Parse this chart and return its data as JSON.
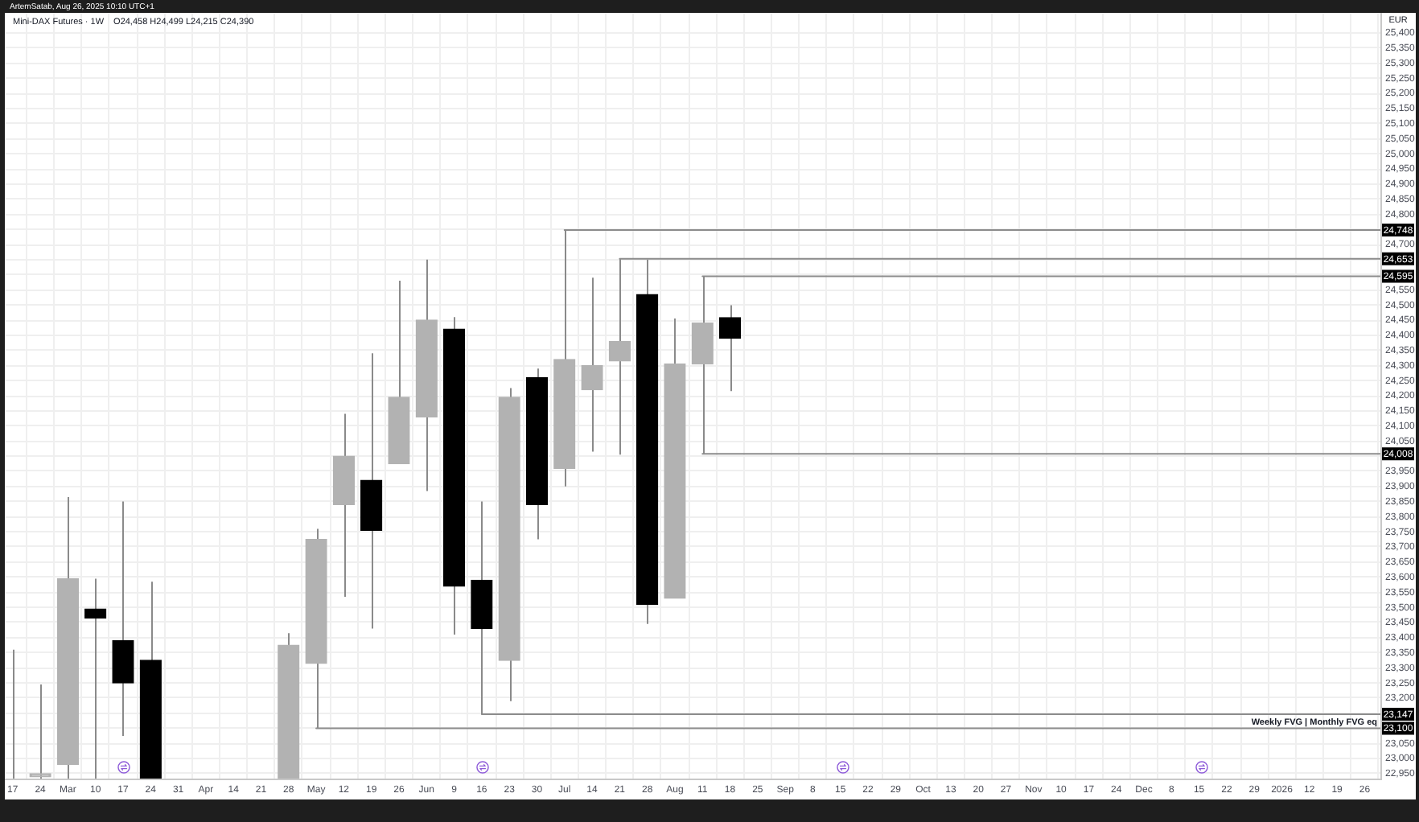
{
  "chart_data": {
    "type": "candlestick",
    "title": "Mini-DAX Futures · 1W",
    "subtitle": "O24,458 H24,499 L24,215 C24,390",
    "ylabel": "EUR",
    "annotations": [
      "ArtemSatab, Aug 26, 2025 10:10 UTC+1"
    ],
    "x": [
      "2025-02-17",
      "2025-02-24",
      "2025-03-03",
      "2025-03-10",
      "2025-03-17",
      "2025-03-24",
      "2025-04-28",
      "2025-05-05",
      "2025-05-12",
      "2025-05-19",
      "2025-05-26",
      "2025-06-02",
      "2025-06-09",
      "2025-06-16",
      "2025-06-23",
      "2025-06-30",
      "2025-07-07",
      "2025-07-14",
      "2025-07-21",
      "2025-07-28",
      "2025-08-04",
      "2025-08-11",
      "2025-08-18"
    ],
    "ohlc": [
      [
        22934,
        23360,
        22934,
        22934
      ],
      [
        22940,
        23245,
        22934,
        22950
      ],
      [
        22980,
        23865,
        22934,
        23595
      ],
      [
        23495,
        23595,
        22934,
        23465
      ],
      [
        23390,
        23850,
        23075,
        23250
      ],
      [
        23325,
        23585,
        22934,
        22934
      ],
      [
        22934,
        23415,
        22934,
        23375
      ],
      [
        23315,
        23760,
        23100,
        23725
      ],
      [
        23840,
        24140,
        23535,
        24000
      ],
      [
        23920,
        24340,
        23430,
        23755
      ],
      [
        23975,
        24580,
        23975,
        24195
      ],
      [
        24130,
        24650,
        23885,
        24450
      ],
      [
        24420,
        24460,
        23410,
        23570
      ],
      [
        23590,
        23850,
        23147,
        23430
      ],
      [
        23325,
        24225,
        23190,
        24195
      ],
      [
        24260,
        24290,
        23725,
        23840
      ],
      [
        23960,
        24748,
        23900,
        24320
      ],
      [
        24220,
        24590,
        24015,
        24300
      ],
      [
        24315,
        24653,
        24005,
        24380
      ],
      [
        24535,
        24650,
        23445,
        23510
      ],
      [
        23530,
        24455,
        23530,
        24305
      ],
      [
        24305,
        24595,
        24008,
        24440
      ],
      [
        24458,
        24499,
        24215,
        24390
      ]
    ],
    "colors": [
      "#b2b2b2",
      "#b2b2b2",
      "#b2b2b2",
      "#000000",
      "#000000",
      "#000000",
      "#b2b2b2",
      "#b2b2b2",
      "#b2b2b2",
      "#000000",
      "#b2b2b2",
      "#b2b2b2",
      "#000000",
      "#000000",
      "#b2b2b2",
      "#000000",
      "#b2b2b2",
      "#b2b2b2",
      "#b2b2b2",
      "#000000",
      "#b2b2b2",
      "#b2b2b2",
      "#000000"
    ],
    "series": [
      {
        "type": "line",
        "color": "#8c8c8c",
        "x": [
          "2025-07-07",
          "2026-01-30"
        ],
        "values": [
          24748,
          24748
        ],
        "value_labels": [
          null,
          "24,748"
        ]
      },
      {
        "type": "line",
        "color": "#8c8c8c",
        "x": [
          "2025-07-21",
          "2026-01-30"
        ],
        "values": [
          24653,
          24653
        ],
        "value_labels": [
          null,
          "24,653"
        ]
      },
      {
        "type": "line",
        "color": "#8c8c8c",
        "x": [
          "2025-08-11",
          "2026-01-30"
        ],
        "values": [
          24595,
          24595
        ],
        "value_labels": [
          null,
          "24,595"
        ]
      },
      {
        "type": "line",
        "color": "#8c8c8c",
        "x": [
          "2025-08-11",
          "2026-01-30"
        ],
        "values": [
          24008,
          24008
        ],
        "value_labels": [
          null,
          "24,008"
        ]
      },
      {
        "type": "line",
        "color": "#8c8c8c",
        "x": [
          "2025-06-16",
          "2026-01-30"
        ],
        "values": [
          23147,
          23147
        ],
        "value_labels": [
          null,
          "23,147"
        ]
      },
      {
        "type": "line",
        "name": "Weekly FVG | Monthly FVG eq",
        "color": "#8c8c8c",
        "x": [
          "2025-05-05",
          "2026-01-30"
        ],
        "values": [
          23100,
          23100
        ],
        "value_labels": [
          null,
          "23,100"
        ]
      }
    ],
    "xlim": [
      "2025-02-15",
      "2026-01-30"
    ],
    "xticks": [
      {
        "value": "2025-02-17",
        "label": "17"
      },
      {
        "value": "2025-02-24",
        "label": "24"
      },
      {
        "value": "2025-03-03",
        "label": "Mar"
      },
      {
        "value": "2025-03-10",
        "label": "10"
      },
      {
        "value": "2025-03-17",
        "label": "17"
      },
      {
        "value": "2025-03-24",
        "label": "24"
      },
      {
        "value": "2025-03-31",
        "label": "31"
      },
      {
        "value": "2025-04-07",
        "label": "Apr"
      },
      {
        "value": "2025-04-14",
        "label": "14"
      },
      {
        "value": "2025-04-21",
        "label": "21"
      },
      {
        "value": "2025-04-28",
        "label": "28"
      },
      {
        "value": "2025-05-05",
        "label": "May"
      },
      {
        "value": "2025-05-12",
        "label": "12"
      },
      {
        "value": "2025-05-19",
        "label": "19"
      },
      {
        "value": "2025-05-26",
        "label": "26"
      },
      {
        "value": "2025-06-02",
        "label": "Jun"
      },
      {
        "value": "2025-06-09",
        "label": "9"
      },
      {
        "value": "2025-06-16",
        "label": "16"
      },
      {
        "value": "2025-06-23",
        "label": "23"
      },
      {
        "value": "2025-06-30",
        "label": "30"
      },
      {
        "value": "2025-07-07",
        "label": "Jul"
      },
      {
        "value": "2025-07-14",
        "label": "14"
      },
      {
        "value": "2025-07-21",
        "label": "21"
      },
      {
        "value": "2025-07-28",
        "label": "28"
      },
      {
        "value": "2025-08-04",
        "label": "Aug"
      },
      {
        "value": "2025-08-11",
        "label": "11"
      },
      {
        "value": "2025-08-18",
        "label": "18"
      },
      {
        "value": "2025-08-25",
        "label": "25"
      },
      {
        "value": "2025-09-01",
        "label": "Sep"
      },
      {
        "value": "2025-09-08",
        "label": "8"
      },
      {
        "value": "2025-09-15",
        "label": "15"
      },
      {
        "value": "2025-09-22",
        "label": "22"
      },
      {
        "value": "2025-09-29",
        "label": "29"
      },
      {
        "value": "2025-10-06",
        "label": "Oct"
      },
      {
        "value": "2025-10-13",
        "label": "13"
      },
      {
        "value": "2025-10-20",
        "label": "20"
      },
      {
        "value": "2025-10-27",
        "label": "27"
      },
      {
        "value": "2025-11-03",
        "label": "Nov"
      },
      {
        "value": "2025-11-10",
        "label": "10"
      },
      {
        "value": "2025-11-17",
        "label": "17"
      },
      {
        "value": "2025-11-24",
        "label": "24"
      },
      {
        "value": "2025-12-01",
        "label": "Dec"
      },
      {
        "value": "2025-12-08",
        "label": "8"
      },
      {
        "value": "2025-12-15",
        "label": "15"
      },
      {
        "value": "2025-12-22",
        "label": "22"
      },
      {
        "value": "2025-12-29",
        "label": "29"
      },
      {
        "value": "2026-01-05",
        "label": "2026"
      },
      {
        "value": "2026-01-12",
        "label": "12"
      },
      {
        "value": "2026-01-19",
        "label": "19"
      },
      {
        "value": "2026-01-26",
        "label": "26"
      }
    ],
    "ylim": [
      22934,
      25466
    ],
    "yticks": [
      {
        "value": 22950,
        "label": "22,950"
      },
      {
        "value": 23000,
        "label": "23,000"
      },
      {
        "value": 23050,
        "label": "23,050"
      },
      {
        "value": 23100,
        "label": null
      },
      {
        "value": 23150,
        "label": null
      },
      {
        "value": 23200,
        "label": "23,200"
      },
      {
        "value": 23250,
        "label": "23,250"
      },
      {
        "value": 23300,
        "label": "23,300"
      },
      {
        "value": 23350,
        "label": "23,350"
      },
      {
        "value": 23400,
        "label": "23,400"
      },
      {
        "value": 23450,
        "label": "23,450"
      },
      {
        "value": 23500,
        "label": "23,500"
      },
      {
        "value": 23550,
        "label": "23,550"
      },
      {
        "value": 23600,
        "label": "23,600"
      },
      {
        "value": 23650,
        "label": "23,650"
      },
      {
        "value": 23700,
        "label": "23,700"
      },
      {
        "value": 23750,
        "label": "23,750"
      },
      {
        "value": 23800,
        "label": "23,800"
      },
      {
        "value": 23850,
        "label": "23,850"
      },
      {
        "value": 23900,
        "label": "23,900"
      },
      {
        "value": 23950,
        "label": "23,950"
      },
      {
        "value": 24000,
        "label": null
      },
      {
        "value": 24050,
        "label": "24,050"
      },
      {
        "value": 24100,
        "label": "24,100"
      },
      {
        "value": 24150,
        "label": "24,150"
      },
      {
        "value": 24200,
        "label": "24,200"
      },
      {
        "value": 24250,
        "label": "24,250"
      },
      {
        "value": 24300,
        "label": "24,300"
      },
      {
        "value": 24350,
        "label": "24,350"
      },
      {
        "value": 24400,
        "label": "24,400"
      },
      {
        "value": 24450,
        "label": "24,450"
      },
      {
        "value": 24500,
        "label": "24,500"
      },
      {
        "value": 24550,
        "label": "24,550"
      },
      {
        "value": 24600,
        "label": null
      },
      {
        "value": 24650,
        "label": null
      },
      {
        "value": 24700,
        "label": "24,700"
      },
      {
        "value": 24750,
        "label": null
      },
      {
        "value": 24800,
        "label": "24,800"
      },
      {
        "value": 24850,
        "label": "24,850"
      },
      {
        "value": 24900,
        "label": "24,900"
      },
      {
        "value": 24950,
        "label": "24,950"
      },
      {
        "value": 25000,
        "label": "25,000"
      },
      {
        "value": 25050,
        "label": "25,050"
      },
      {
        "value": 25100,
        "label": "25,100"
      },
      {
        "value": 25150,
        "label": "25,150"
      },
      {
        "value": 25200,
        "label": "25,200"
      },
      {
        "value": 25250,
        "label": "25,250"
      },
      {
        "value": 25300,
        "label": "25,300"
      },
      {
        "value": 25350,
        "label": "25,350"
      },
      {
        "value": 25400,
        "label": "25,400"
      }
    ],
    "grid": true
  }
}
